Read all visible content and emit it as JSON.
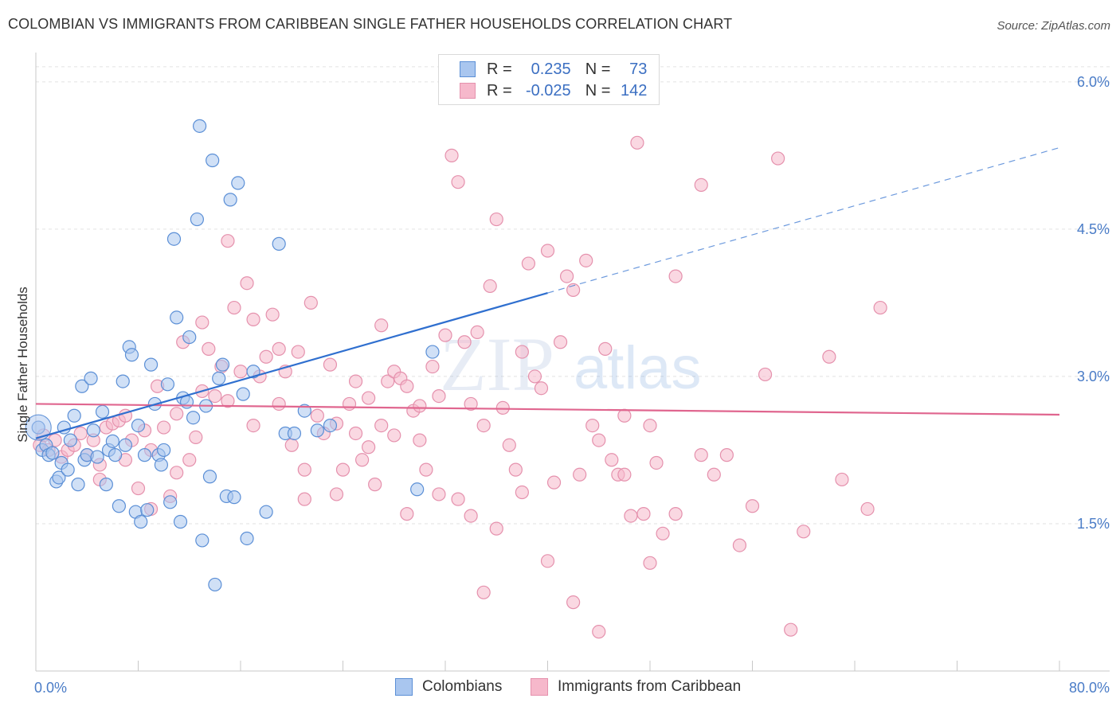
{
  "title": "COLOMBIAN VS IMMIGRANTS FROM CARIBBEAN SINGLE FATHER HOUSEHOLDS CORRELATION CHART",
  "source": "Source: ZipAtlas.com",
  "legend": {
    "r_label": "R =",
    "n_label": "N =",
    "rows": [
      {
        "r": "0.235",
        "n": "73"
      },
      {
        "r": "-0.025",
        "n": "142"
      }
    ]
  },
  "watermark": {
    "zip": "ZIP",
    "atlas": "atlas"
  },
  "colors": {
    "colombians_fill": "#a9c6ef",
    "colombians_stroke": "#5b8fd6",
    "colombians_line": "#2f6fcf",
    "caribbean_fill": "#f6b8cb",
    "caribbean_stroke": "#e591ad",
    "caribbean_line": "#e0668f",
    "tick_text": "#4a7cc7",
    "grid": "#e2e2e2"
  },
  "chart_data": {
    "type": "scatter",
    "title": "COLOMBIAN VS IMMIGRANTS FROM CARIBBEAN SINGLE FATHER HOUSEHOLDS CORRELATION CHART",
    "xlabel": "",
    "ylabel": "Single Father Households",
    "xlim": [
      0,
      80
    ],
    "ylim": [
      0,
      6.25
    ],
    "x_tick_labels": [
      "0.0%",
      "80.0%"
    ],
    "y_ticks": [
      1.5,
      3.0,
      4.5,
      6.0
    ],
    "y_tick_labels": [
      "1.5%",
      "3.0%",
      "4.5%",
      "6.0%"
    ],
    "grid": true,
    "legend_position": "bottom",
    "series": [
      {
        "name": "Colombians",
        "trend": {
          "x0": 0,
          "y0": 2.37,
          "x1": 40,
          "y1": 3.85,
          "dashed_to_x": 80,
          "dashed_to_y": 5.33
        },
        "points": [
          [
            0.2,
            2.48
          ],
          [
            0.5,
            2.25
          ],
          [
            0.8,
            2.3
          ],
          [
            1.0,
            2.2
          ],
          [
            1.3,
            2.22
          ],
          [
            1.6,
            1.93
          ],
          [
            1.8,
            1.97
          ],
          [
            2.0,
            2.12
          ],
          [
            2.2,
            2.48
          ],
          [
            2.5,
            2.05
          ],
          [
            2.7,
            2.35
          ],
          [
            3.0,
            2.6
          ],
          [
            3.3,
            1.9
          ],
          [
            3.6,
            2.9
          ],
          [
            3.8,
            2.15
          ],
          [
            4.0,
            2.2
          ],
          [
            4.3,
            2.98
          ],
          [
            4.5,
            2.45
          ],
          [
            4.8,
            2.18
          ],
          [
            5.2,
            2.64
          ],
          [
            5.5,
            1.9
          ],
          [
            5.7,
            2.25
          ],
          [
            6.0,
            2.34
          ],
          [
            6.2,
            2.2
          ],
          [
            6.5,
            1.68
          ],
          [
            6.8,
            2.95
          ],
          [
            7.0,
            2.3
          ],
          [
            7.3,
            3.3
          ],
          [
            7.5,
            3.22
          ],
          [
            7.8,
            1.62
          ],
          [
            8.0,
            2.5
          ],
          [
            8.2,
            1.52
          ],
          [
            8.5,
            2.2
          ],
          [
            8.7,
            1.64
          ],
          [
            9.0,
            3.12
          ],
          [
            9.3,
            2.72
          ],
          [
            9.6,
            2.2
          ],
          [
            9.8,
            2.1
          ],
          [
            10.0,
            2.25
          ],
          [
            10.3,
            2.92
          ],
          [
            10.5,
            1.72
          ],
          [
            10.8,
            4.4
          ],
          [
            11.0,
            3.6
          ],
          [
            11.3,
            1.52
          ],
          [
            11.5,
            2.78
          ],
          [
            11.8,
            2.74
          ],
          [
            12.0,
            3.4
          ],
          [
            12.3,
            2.58
          ],
          [
            12.6,
            4.6
          ],
          [
            12.8,
            5.55
          ],
          [
            13.0,
            1.33
          ],
          [
            13.3,
            2.7
          ],
          [
            13.6,
            1.98
          ],
          [
            13.8,
            5.2
          ],
          [
            14.0,
            0.88
          ],
          [
            14.3,
            2.98
          ],
          [
            14.6,
            3.12
          ],
          [
            14.9,
            1.78
          ],
          [
            15.2,
            4.8
          ],
          [
            15.5,
            1.77
          ],
          [
            15.8,
            4.97
          ],
          [
            16.2,
            2.82
          ],
          [
            16.5,
            1.35
          ],
          [
            17.0,
            3.05
          ],
          [
            18.0,
            1.62
          ],
          [
            19.0,
            4.35
          ],
          [
            19.5,
            2.42
          ],
          [
            20.2,
            2.42
          ],
          [
            21.0,
            2.65
          ],
          [
            22.0,
            2.45
          ],
          [
            23.0,
            2.5
          ],
          [
            29.8,
            1.85
          ],
          [
            31.0,
            3.25
          ]
        ]
      },
      {
        "name": "Immigrants from Caribbean",
        "trend": {
          "x0": 0,
          "y0": 2.72,
          "x1": 80,
          "y1": 2.61
        },
        "points": [
          [
            0.3,
            2.3
          ],
          [
            0.6,
            2.4
          ],
          [
            1.0,
            2.25
          ],
          [
            1.5,
            2.35
          ],
          [
            2.0,
            2.18
          ],
          [
            2.5,
            2.25
          ],
          [
            3.0,
            2.3
          ],
          [
            3.5,
            2.42
          ],
          [
            4.0,
            2.2
          ],
          [
            4.5,
            2.35
          ],
          [
            5.0,
            2.1
          ],
          [
            5.5,
            2.48
          ],
          [
            6.0,
            2.52
          ],
          [
            6.5,
            2.55
          ],
          [
            7.0,
            2.6
          ],
          [
            7.5,
            2.35
          ],
          [
            8.0,
            1.86
          ],
          [
            8.5,
            2.45
          ],
          [
            9.0,
            2.25
          ],
          [
            9.5,
            2.9
          ],
          [
            10.0,
            2.48
          ],
          [
            10.5,
            1.78
          ],
          [
            11.0,
            2.62
          ],
          [
            11.5,
            3.35
          ],
          [
            12.0,
            2.15
          ],
          [
            12.5,
            2.38
          ],
          [
            13.0,
            3.55
          ],
          [
            13.5,
            3.28
          ],
          [
            14.0,
            2.8
          ],
          [
            14.5,
            3.1
          ],
          [
            15.0,
            2.75
          ],
          [
            15.5,
            3.7
          ],
          [
            16.0,
            3.05
          ],
          [
            16.5,
            3.95
          ],
          [
            17.0,
            2.5
          ],
          [
            17.5,
            3.0
          ],
          [
            18.0,
            3.2
          ],
          [
            18.5,
            3.63
          ],
          [
            19.0,
            2.72
          ],
          [
            19.5,
            3.05
          ],
          [
            20.0,
            2.3
          ],
          [
            20.5,
            3.25
          ],
          [
            21.0,
            2.05
          ],
          [
            21.5,
            3.75
          ],
          [
            22.0,
            2.6
          ],
          [
            22.5,
            2.42
          ],
          [
            23.0,
            3.12
          ],
          [
            23.5,
            2.52
          ],
          [
            24.0,
            2.05
          ],
          [
            24.5,
            2.72
          ],
          [
            25.0,
            2.42
          ],
          [
            25.5,
            2.15
          ],
          [
            26.0,
            2.28
          ],
          [
            26.5,
            1.9
          ],
          [
            27.0,
            3.52
          ],
          [
            27.5,
            2.95
          ],
          [
            28.0,
            3.05
          ],
          [
            28.5,
            2.98
          ],
          [
            29.0,
            2.9
          ],
          [
            29.5,
            2.65
          ],
          [
            30.0,
            2.7
          ],
          [
            30.5,
            2.05
          ],
          [
            31.0,
            3.1
          ],
          [
            31.5,
            2.8
          ],
          [
            32.0,
            3.42
          ],
          [
            32.5,
            5.25
          ],
          [
            33.0,
            4.98
          ],
          [
            33.5,
            3.35
          ],
          [
            34.0,
            2.72
          ],
          [
            34.5,
            3.45
          ],
          [
            35.0,
            2.5
          ],
          [
            35.5,
            3.92
          ],
          [
            36.0,
            4.6
          ],
          [
            36.5,
            2.68
          ],
          [
            37.0,
            2.3
          ],
          [
            37.5,
            2.05
          ],
          [
            38.0,
            3.25
          ],
          [
            38.5,
            4.15
          ],
          [
            39.0,
            3.0
          ],
          [
            39.5,
            2.88
          ],
          [
            40.0,
            4.28
          ],
          [
            40.5,
            1.92
          ],
          [
            41.0,
            3.35
          ],
          [
            41.5,
            4.02
          ],
          [
            42.0,
            3.88
          ],
          [
            42.5,
            2.0
          ],
          [
            43.0,
            4.18
          ],
          [
            43.5,
            2.5
          ],
          [
            44.0,
            2.35
          ],
          [
            44.5,
            3.28
          ],
          [
            45.0,
            2.15
          ],
          [
            45.5,
            2.0
          ],
          [
            46.0,
            2.6
          ],
          [
            46.5,
            1.58
          ],
          [
            47.0,
            5.38
          ],
          [
            47.5,
            1.6
          ],
          [
            48.0,
            2.5
          ],
          [
            48.5,
            2.12
          ],
          [
            49.0,
            1.4
          ],
          [
            50.0,
            4.02
          ],
          [
            52.0,
            4.95
          ],
          [
            53.0,
            2.0
          ],
          [
            54.0,
            2.2
          ],
          [
            55.0,
            1.28
          ],
          [
            56.0,
            1.68
          ],
          [
            57.0,
            3.02
          ],
          [
            58.0,
            5.22
          ],
          [
            59.0,
            0.42
          ],
          [
            60.0,
            1.42
          ],
          [
            62.0,
            3.2
          ],
          [
            63.0,
            1.95
          ],
          [
            65.0,
            1.65
          ],
          [
            66.0,
            3.7
          ],
          [
            33.0,
            1.75
          ],
          [
            35.0,
            0.8
          ],
          [
            36.0,
            1.45
          ],
          [
            38.0,
            1.82
          ],
          [
            40.0,
            1.12
          ],
          [
            42.0,
            0.7
          ],
          [
            44.0,
            0.4
          ],
          [
            46.0,
            2.0
          ],
          [
            48.0,
            1.1
          ],
          [
            50.0,
            1.6
          ],
          [
            52.0,
            2.2
          ],
          [
            29.0,
            1.6
          ],
          [
            31.5,
            1.8
          ],
          [
            34.0,
            1.58
          ],
          [
            15.0,
            4.38
          ],
          [
            17.0,
            3.58
          ],
          [
            19.0,
            3.28
          ],
          [
            13.0,
            2.85
          ],
          [
            11.0,
            2.02
          ],
          [
            9.0,
            1.65
          ],
          [
            7.0,
            2.15
          ],
          [
            5.0,
            1.95
          ],
          [
            25.0,
            2.95
          ],
          [
            27.0,
            2.5
          ],
          [
            30.0,
            2.35
          ],
          [
            21.0,
            1.75
          ],
          [
            23.5,
            1.8
          ],
          [
            26.0,
            2.78
          ],
          [
            28.0,
            2.4
          ]
        ]
      }
    ]
  },
  "bottom_legend": [
    "Colombians",
    "Immigrants from Caribbean"
  ]
}
